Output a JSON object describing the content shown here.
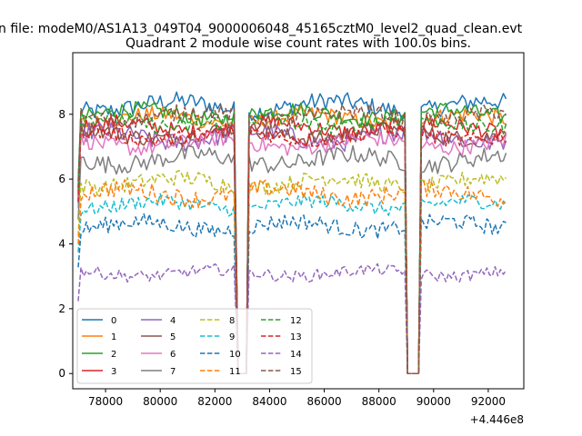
{
  "figure": {
    "suptitle": "n file: modeM0/AS1A13_049T04_9000006048_45165cztM0_level2_quad_clean.evt"
  },
  "chart_data": {
    "type": "line",
    "title": "Quadrant 2 module wise count rates with 100.0s bins.",
    "xlabel": "",
    "ylabel": "",
    "x_offset_label": "+4.446e8",
    "xlim": [
      76800,
      93300
    ],
    "ylim": [
      -0.47,
      9.9
    ],
    "xticks": [
      78000,
      80000,
      82000,
      84000,
      86000,
      88000,
      90000,
      92000
    ],
    "xtick_labels": [
      "78000",
      "80000",
      "82000",
      "84000",
      "86000",
      "88000",
      "90000",
      "92000"
    ],
    "yticks": [
      0,
      2,
      4,
      6,
      8
    ],
    "ytick_labels": [
      "0",
      "2",
      "4",
      "6",
      "8"
    ],
    "grid": false,
    "legend": {
      "location": "lower-left",
      "columns": 4
    },
    "segments": [
      {
        "start": 77000,
        "end": 82750
      },
      {
        "start": 83250,
        "end": 88950
      },
      {
        "start": 89550,
        "end": 92650
      }
    ],
    "gaps": [
      {
        "start": 82850,
        "end": 83150,
        "value": 0
      },
      {
        "start": 89050,
        "end": 89450,
        "value": 0
      }
    ],
    "series": [
      {
        "name": "0",
        "mean": 8.25,
        "noise": 0.28,
        "color": "#1f77b4",
        "dashed": false
      },
      {
        "name": "1",
        "mean": 7.85,
        "noise": 0.25,
        "color": "#ff7f0e",
        "dashed": false
      },
      {
        "name": "2",
        "mean": 8.0,
        "noise": 0.25,
        "color": "#2ca02c",
        "dashed": false
      },
      {
        "name": "3",
        "mean": 7.6,
        "noise": 0.25,
        "color": "#d62728",
        "dashed": false
      },
      {
        "name": "4",
        "mean": 7.3,
        "noise": 0.3,
        "color": "#9467bd",
        "dashed": false
      },
      {
        "name": "5",
        "mean": 7.4,
        "noise": 0.25,
        "color": "#8c564b",
        "dashed": false
      },
      {
        "name": "6",
        "mean": 7.1,
        "noise": 0.25,
        "color": "#e377c2",
        "dashed": false
      },
      {
        "name": "7",
        "mean": 6.6,
        "noise": 0.28,
        "color": "#7f7f7f",
        "dashed": false
      },
      {
        "name": "8",
        "mean": 5.9,
        "noise": 0.25,
        "color": "#bcbd22",
        "dashed": true
      },
      {
        "name": "9",
        "mean": 5.2,
        "noise": 0.22,
        "color": "#17becf",
        "dashed": true
      },
      {
        "name": "10",
        "mean": 4.55,
        "noise": 0.25,
        "color": "#1f77b4",
        "dashed": true
      },
      {
        "name": "11",
        "mean": 5.55,
        "noise": 0.28,
        "color": "#ff7f0e",
        "dashed": true
      },
      {
        "name": "12",
        "mean": 7.75,
        "noise": 0.25,
        "color": "#2ca02c",
        "dashed": true
      },
      {
        "name": "13",
        "mean": 7.35,
        "noise": 0.25,
        "color": "#d62728",
        "dashed": true
      },
      {
        "name": "14",
        "mean": 3.1,
        "noise": 0.18,
        "color": "#9467bd",
        "dashed": true
      },
      {
        "name": "15",
        "mean": 7.95,
        "noise": 0.25,
        "color": "#8c564b",
        "dashed": true
      }
    ]
  }
}
